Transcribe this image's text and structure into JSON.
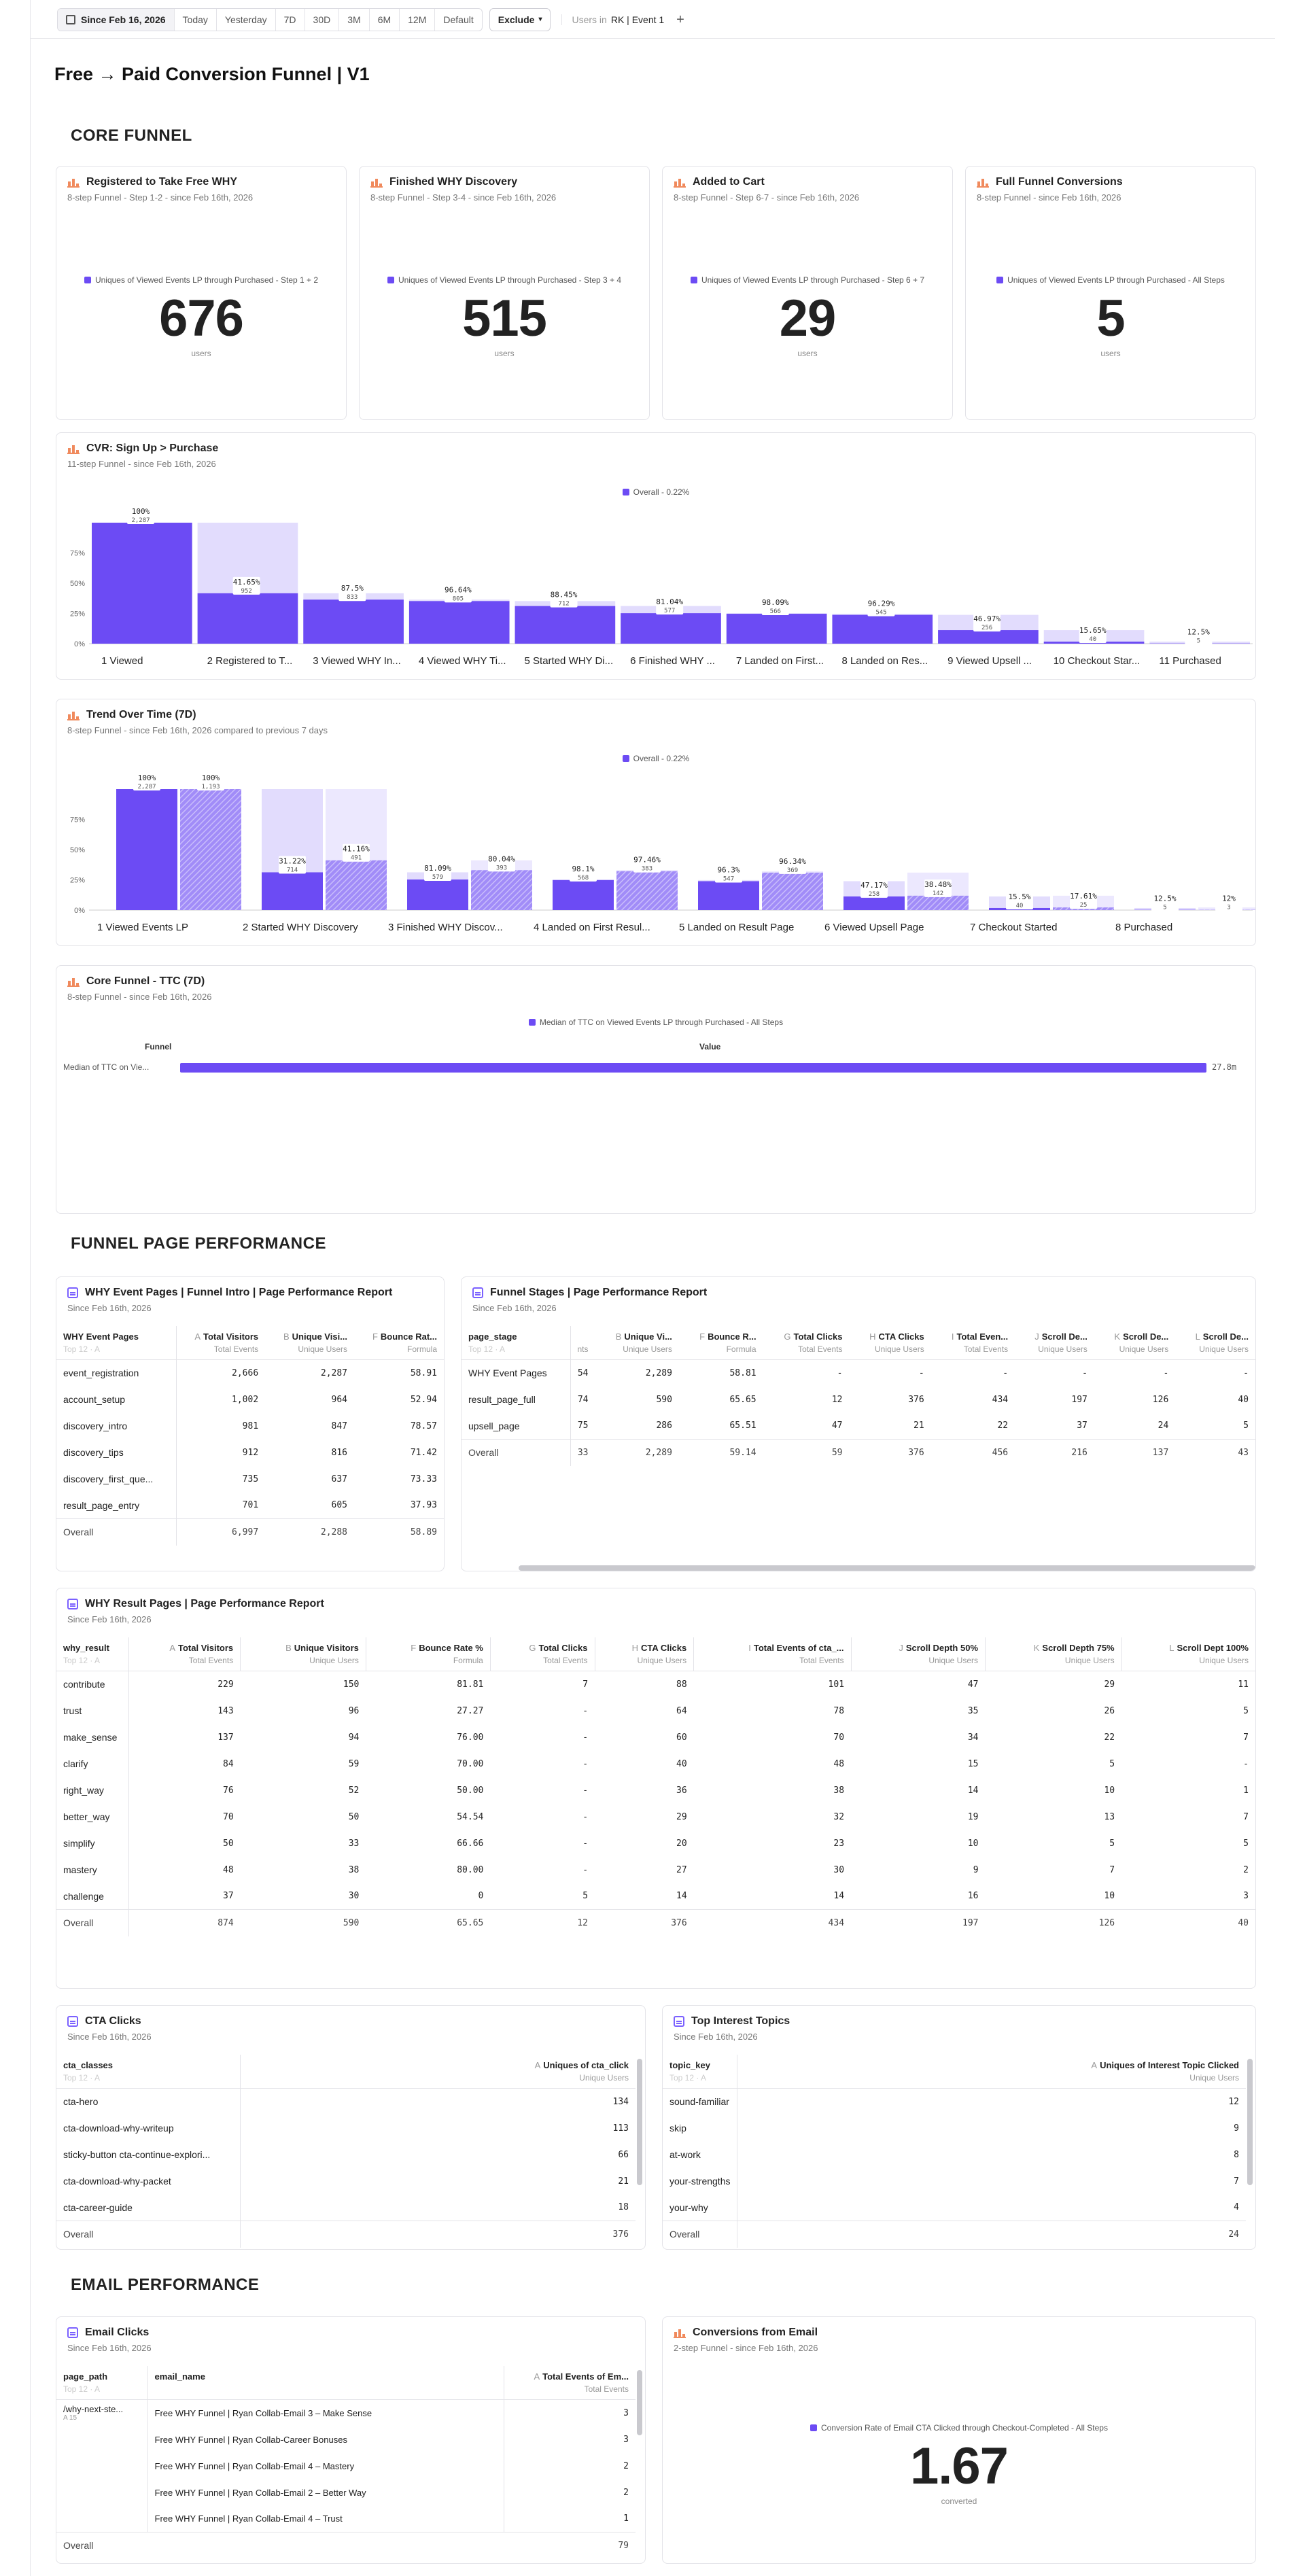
{
  "topbar": {
    "date": "Since Feb 16, 2026",
    "ranges": [
      "Today",
      "Yesterday",
      "7D",
      "30D",
      "3M",
      "6M",
      "12M",
      "Default"
    ],
    "exclude": "Exclude",
    "users_label": "Users in",
    "users_value": "RK | Event 1"
  },
  "page": {
    "title": "Free → Paid Conversion Funnel | V1"
  },
  "sections": {
    "core": "CORE FUNNEL",
    "performance": "FUNNEL PAGE PERFORMANCE",
    "email": "EMAIL PERFORMANCE"
  },
  "kpis": [
    {
      "title": "Registered to Take Free WHY",
      "subtitle": "8-step Funnel - Step 1-2 - since Feb 16th, 2026",
      "legend": "Uniques of Viewed Events LP through Purchased - Step 1 + 2",
      "value": "676",
      "unit": "users"
    },
    {
      "title": "Finished WHY Discovery",
      "subtitle": "8-step Funnel - Step 3-4 - since Feb 16th, 2026",
      "legend": "Uniques of Viewed Events LP through Purchased - Step 3 + 4",
      "value": "515",
      "unit": "users"
    },
    {
      "title": "Added to Cart",
      "subtitle": "8-step Funnel - Step 6-7 - since Feb 16th, 2026",
      "legend": "Uniques of Viewed Events LP through Purchased - Step 6 + 7",
      "value": "29",
      "unit": "users"
    },
    {
      "title": "Full Funnel Conversions",
      "subtitle": "8-step Funnel - since Feb 16th, 2026",
      "legend": "Uniques of Viewed Events LP through Purchased - All Steps",
      "value": "5",
      "unit": "users"
    }
  ],
  "cvr": {
    "title": "CVR: Sign Up > Purchase",
    "subtitle": "11-step Funnel - since Feb 16th, 2026",
    "legend": "Overall - 0.22%",
    "yticks": [
      "75%",
      "50%",
      "25%",
      "0%"
    ],
    "colors": {
      "bar": "#6c4bf4",
      "ghost": "#e2dcfd"
    }
  },
  "trend": {
    "title": "Trend Over Time (7D)",
    "subtitle": "8-step Funnel - since Feb 16th, 2026 compared to previous 7 days",
    "legend": "Overall - 0.22%",
    "yticks": [
      "75%",
      "50%",
      "25%",
      "0%"
    ]
  },
  "chart_data": [
    {
      "type": "bar",
      "title": "CVR: Sign Up > Purchase",
      "categories": [
        "1 Viewed",
        "2 Registered to T...",
        "3 Viewed WHY In...",
        "4 Viewed WHY Ti...",
        "5 Started WHY Di...",
        "6 Finished WHY ...",
        "7 Landed on First...",
        "8 Landed on Res...",
        "9 Viewed Upsell ...",
        "10 Checkout Star...",
        "11 Purchased"
      ],
      "values": [
        100,
        41.65,
        36.4,
        35.2,
        31.1,
        25.2,
        24.7,
        23.8,
        11.2,
        1.7,
        0.22
      ],
      "step_pct": [
        "100%",
        "41.65%",
        "87.5%",
        "96.64%",
        "88.45%",
        "81.04%",
        "98.09%",
        "96.29%",
        "46.97%",
        "15.65%",
        "12.5%"
      ],
      "counts": [
        "2,287",
        "952",
        "833",
        "805",
        "712",
        "577",
        "566",
        "545",
        "256",
        "40",
        "5"
      ],
      "ylim": [
        0,
        100
      ]
    },
    {
      "type": "bar",
      "title": "Trend Over Time (7D)",
      "categories": [
        "1 Viewed Events LP",
        "2 Started WHY Discovery",
        "3 Finished WHY Discov...",
        "4 Landed on First Resul...",
        "5 Landed on Result Page",
        "6 Viewed Upsell Page",
        "7 Checkout Started",
        "8 Purchased"
      ],
      "series": [
        {
          "name": "current",
          "values": [
            100,
            31.22,
            25.3,
            24.8,
            23.9,
            11.3,
            1.7,
            0.22
          ],
          "step_pct": [
            "100%",
            "31.22%",
            "81.09%",
            "98.1%",
            "96.3%",
            "47.17%",
            "15.5%",
            "12.5%"
          ],
          "counts": [
            "2,287",
            "714",
            "579",
            "568",
            "547",
            "258",
            "40",
            "5"
          ]
        },
        {
          "name": "previous",
          "values": [
            100,
            41.16,
            33.0,
            32.2,
            31.0,
            11.9,
            2.2,
            0.26
          ],
          "step_pct": [
            "100%",
            "41.16%",
            "80.04%",
            "97.46%",
            "96.34%",
            "38.48%",
            "17.61%",
            "12%"
          ],
          "counts": [
            "1,193",
            "491",
            "393",
            "383",
            "369",
            "142",
            "25",
            "3"
          ]
        }
      ],
      "ylim": [
        0,
        100
      ]
    },
    {
      "type": "bar",
      "title": "Core Funnel - TTC (7D)",
      "categories": [
        "Median of TTC on Viewed Events LP through Purchased - All Steps"
      ],
      "values": [
        27.8
      ],
      "value_label": "27.8m"
    }
  ],
  "ttc": {
    "title": "Core Funnel - TTC (7D)",
    "subtitle": "8-step Funnel - since Feb 16th, 2026",
    "legend": "Median of TTC on Viewed Events LP through Purchased - All Steps",
    "col_funnel": "Funnel",
    "col_value": "Value",
    "row_label": "Median of TTC on Vie...",
    "value": "27.8m"
  },
  "why_event": {
    "title": "WHY Event Pages | Funnel Intro | Page Performance Report",
    "subtitle": "Since Feb 16th, 2026",
    "first_col": "WHY Event Pages",
    "first_sub": "Top 12 · A",
    "cols": [
      {
        "l": "A",
        "n": "Total Visitors",
        "s": "Total Events"
      },
      {
        "l": "B",
        "n": "Unique Visi...",
        "s": "Unique Users"
      },
      {
        "l": "F",
        "n": "Bounce Rat...",
        "s": "Formula"
      }
    ],
    "rows": [
      [
        "event_registration",
        "2,666",
        "2,287",
        "58.91"
      ],
      [
        "account_setup",
        "1,002",
        "964",
        "52.94"
      ],
      [
        "discovery_intro",
        "981",
        "847",
        "78.57"
      ],
      [
        "discovery_tips",
        "912",
        "816",
        "71.42"
      ],
      [
        "discovery_first_que...",
        "735",
        "637",
        "73.33"
      ],
      [
        "result_page_entry",
        "701",
        "605",
        "37.93"
      ]
    ],
    "overall": [
      "Overall",
      "6,997",
      "2,288",
      "58.89"
    ]
  },
  "stages": {
    "title": "Funnel Stages | Page Performance Report",
    "subtitle": "Since Feb 16th, 2026",
    "first_col": "page_stage",
    "first_sub": "Top 12 · A",
    "cols": [
      {
        "l": "",
        "n": "",
        "s": "nts"
      },
      {
        "l": "B",
        "n": "Unique Vi...",
        "s": "Unique Users"
      },
      {
        "l": "F",
        "n": "Bounce R...",
        "s": "Formula"
      },
      {
        "l": "G",
        "n": "Total Clicks",
        "s": "Total Events"
      },
      {
        "l": "H",
        "n": "CTA Clicks",
        "s": "Unique Users"
      },
      {
        "l": "I",
        "n": "Total Even...",
        "s": "Total Events"
      },
      {
        "l": "J",
        "n": "Scroll De...",
        "s": "Unique Users"
      },
      {
        "l": "K",
        "n": "Scroll De...",
        "s": "Unique Users"
      },
      {
        "l": "L",
        "n": "Scroll De...",
        "s": "Unique Users"
      }
    ],
    "rows": [
      [
        "WHY Event Pages",
        "54",
        "2,289",
        "58.81",
        "-",
        "-",
        "-",
        "-",
        "-",
        "-"
      ],
      [
        "result_page_full",
        "74",
        "590",
        "65.65",
        "12",
        "376",
        "434",
        "197",
        "126",
        "40"
      ],
      [
        "upsell_page",
        "75",
        "286",
        "65.51",
        "47",
        "21",
        "22",
        "37",
        "24",
        "5"
      ]
    ],
    "overall": [
      "Overall",
      "33",
      "2,289",
      "59.14",
      "59",
      "376",
      "456",
      "216",
      "137",
      "43"
    ]
  },
  "results": {
    "title": "WHY Result Pages | Page Performance Report",
    "subtitle": "Since Feb 16th, 2026",
    "first_col": "why_result",
    "first_sub": "Top 12 · A",
    "cols": [
      {
        "l": "A",
        "n": "Total Visitors",
        "s": "Total Events"
      },
      {
        "l": "B",
        "n": "Unique Visitors",
        "s": "Unique Users"
      },
      {
        "l": "F",
        "n": "Bounce Rate %",
        "s": "Formula"
      },
      {
        "l": "G",
        "n": "Total Clicks",
        "s": "Total Events"
      },
      {
        "l": "H",
        "n": "CTA Clicks",
        "s": "Unique Users"
      },
      {
        "l": "I",
        "n": "Total Events of cta_...",
        "s": "Total Events"
      },
      {
        "l": "J",
        "n": "Scroll Depth 50%",
        "s": "Unique Users"
      },
      {
        "l": "K",
        "n": "Scroll Depth 75%",
        "s": "Unique Users"
      },
      {
        "l": "L",
        "n": "Scroll Dept 100%",
        "s": "Unique Users"
      }
    ],
    "rows": [
      [
        "contribute",
        "229",
        "150",
        "81.81",
        "7",
        "88",
        "101",
        "47",
        "29",
        "11"
      ],
      [
        "trust",
        "143",
        "96",
        "27.27",
        "-",
        "64",
        "78",
        "35",
        "26",
        "5"
      ],
      [
        "make_sense",
        "137",
        "94",
        "76.00",
        "-",
        "60",
        "70",
        "34",
        "22",
        "7"
      ],
      [
        "clarify",
        "84",
        "59",
        "70.00",
        "-",
        "40",
        "48",
        "15",
        "5",
        "-"
      ],
      [
        "right_way",
        "76",
        "52",
        "50.00",
        "-",
        "36",
        "38",
        "14",
        "10",
        "1"
      ],
      [
        "better_way",
        "70",
        "50",
        "54.54",
        "-",
        "29",
        "32",
        "19",
        "13",
        "7"
      ],
      [
        "simplify",
        "50",
        "33",
        "66.66",
        "-",
        "20",
        "23",
        "10",
        "5",
        "5"
      ],
      [
        "mastery",
        "48",
        "38",
        "80.00",
        "-",
        "27",
        "30",
        "9",
        "7",
        "2"
      ],
      [
        "challenge",
        "37",
        "30",
        "0",
        "5",
        "14",
        "14",
        "16",
        "10",
        "3"
      ]
    ],
    "overall": [
      "Overall",
      "874",
      "590",
      "65.65",
      "12",
      "376",
      "434",
      "197",
      "126",
      "40"
    ]
  },
  "cta": {
    "title": "CTA Clicks",
    "subtitle": "Since Feb 16th, 2026",
    "first_col": "cta_classes",
    "first_sub": "Top 12 · A",
    "col": {
      "l": "A",
      "n": "Uniques of cta_click",
      "s": "Unique Users"
    },
    "rows": [
      [
        "cta-hero",
        "134"
      ],
      [
        "cta-download-why-writeup",
        "113"
      ],
      [
        "sticky-button cta-continue-explori...",
        "66"
      ],
      [
        "cta-download-why-packet",
        "21"
      ],
      [
        "cta-career-guide",
        "18"
      ]
    ],
    "overall": [
      "Overall",
      "376"
    ]
  },
  "topics": {
    "title": "Top Interest Topics",
    "subtitle": "Since Feb 16th, 2026",
    "first_col": "topic_key",
    "first_sub": "Top 12 · A",
    "col": {
      "l": "A",
      "n": "Uniques of Interest Topic Clicked",
      "s": "Unique Users"
    },
    "rows": [
      [
        "sound-familiar",
        "12"
      ],
      [
        "skip",
        "9"
      ],
      [
        "at-work",
        "8"
      ],
      [
        "your-strengths",
        "7"
      ],
      [
        "your-why",
        "4"
      ]
    ],
    "overall": [
      "Overall",
      "24"
    ]
  },
  "email_clicks": {
    "title": "Email Clicks",
    "subtitle": "Since Feb 16th, 2026",
    "c1": "page_path",
    "c1_sub": "Top 12 · A",
    "c2": "email_name",
    "c3": {
      "l": "A",
      "n": "Total Events of Em...",
      "s": "Total Events"
    },
    "path": "/why-next-ste...",
    "path_sub": "A 15",
    "rows": [
      [
        "Free WHY Funnel | Ryan Collab-Email 3 – Make Sense",
        "3"
      ],
      [
        "Free WHY Funnel | Ryan Collab-Career Bonuses",
        "3"
      ],
      [
        "Free WHY Funnel | Ryan Collab-Email 4 – Mastery",
        "2"
      ],
      [
        "Free WHY Funnel | Ryan Collab-Email 2 – Better Way",
        "2"
      ],
      [
        "Free WHY Funnel | Ryan Collab-Email 4 – Trust",
        "1"
      ]
    ],
    "overall": [
      "Overall",
      "79"
    ]
  },
  "email_conv": {
    "title": "Conversions from Email",
    "subtitle": "2-step Funnel - since Feb 16th, 2026",
    "legend": "Conversion Rate of Email CTA Clicked through Checkout-Completed - All Steps",
    "value": "1.67",
    "unit": "converted"
  }
}
